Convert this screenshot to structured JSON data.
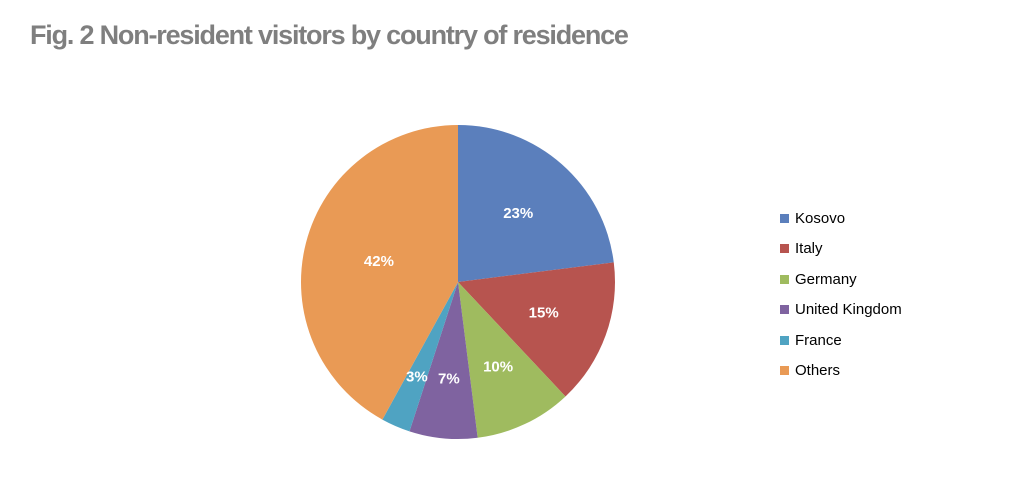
{
  "chart_data": {
    "type": "pie",
    "title": "Fig. 2 Non-resident visitors by country of residence",
    "categories": [
      "Kosovo",
      "Italy",
      "Germany",
      "United Kingdom",
      "France",
      "Others"
    ],
    "values": [
      23,
      15,
      10,
      7,
      3,
      42
    ],
    "data_labels": [
      "23%",
      "15%",
      "10%",
      "7%",
      "3%",
      "42%"
    ],
    "colors": [
      "#5b7fbc",
      "#b7544f",
      "#9fbb5f",
      "#7f63a0",
      "#4fa3c2",
      "#e99a55"
    ],
    "legend": {
      "placement": "right",
      "entries": [
        "Kosovo",
        "Italy",
        "Germany",
        "United Kingdom",
        "France",
        "Others"
      ]
    },
    "start_angle": "12 o'clock",
    "direction": "clockwise"
  }
}
